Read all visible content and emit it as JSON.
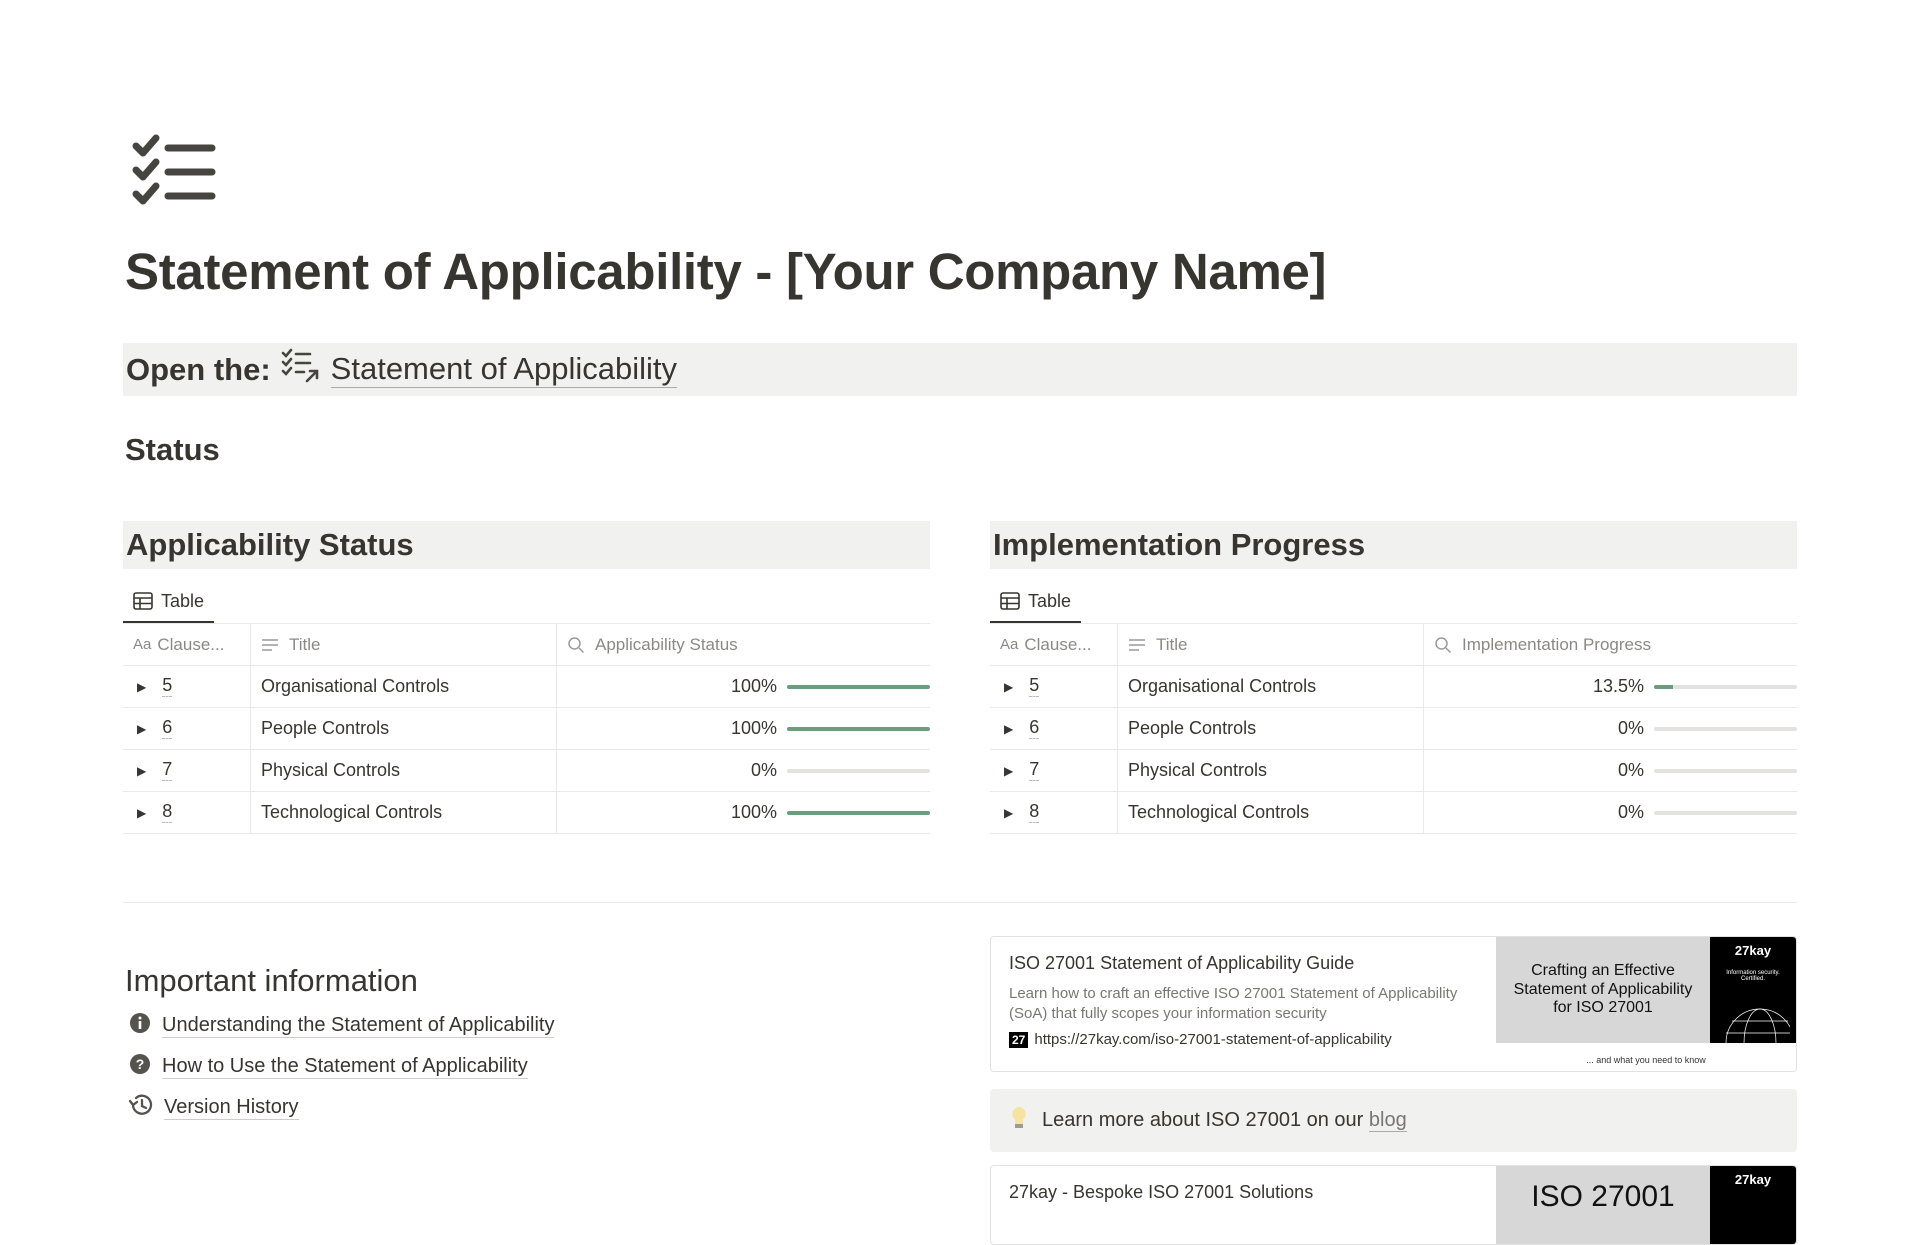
{
  "page": {
    "icon": "checklist-icon",
    "title": "Statement of Applicability - [Your Company Name]"
  },
  "open_bar": {
    "label": "Open the:",
    "link_icon": "checklist-link-icon",
    "link": "Statement of Applicability"
  },
  "status_heading": "Status",
  "accent_color": "#6c9b7d",
  "tables": [
    {
      "heading": "Applicability Status",
      "view_tab": "Table",
      "columns": [
        "Clause...",
        "Title",
        "Applicability Status"
      ],
      "rows": [
        {
          "clause": "5",
          "title": "Organisational Controls",
          "value": "100%",
          "fraction": 1
        },
        {
          "clause": "6",
          "title": "People Controls",
          "value": "100%",
          "fraction": 1
        },
        {
          "clause": "7",
          "title": "Physical Controls",
          "value": "0%",
          "fraction": 0
        },
        {
          "clause": "8",
          "title": "Technological Controls",
          "value": "100%",
          "fraction": 1
        }
      ]
    },
    {
      "heading": "Implementation Progress",
      "view_tab": "Table",
      "columns": [
        "Clause...",
        "Title",
        "Implementation Progress"
      ],
      "rows": [
        {
          "clause": "5",
          "title": "Organisational Controls",
          "value": "13.5%",
          "fraction": 0.135
        },
        {
          "clause": "6",
          "title": "People Controls",
          "value": "0%",
          "fraction": 0
        },
        {
          "clause": "7",
          "title": "Physical Controls",
          "value": "0%",
          "fraction": 0
        },
        {
          "clause": "8",
          "title": "Technological Controls",
          "value": "0%",
          "fraction": 0
        }
      ]
    }
  ],
  "important": {
    "heading": "Important information",
    "links": [
      {
        "icon": "info-icon",
        "label": "Understanding the Statement of Applicability"
      },
      {
        "icon": "question-icon",
        "label": "How to Use the Statement of Applicability"
      },
      {
        "icon": "history-icon",
        "label": "Version History"
      }
    ]
  },
  "bookmarks": [
    {
      "title": "ISO 27001 Statement of Applicability Guide",
      "description": "Learn how to craft an effective ISO 27001 Statement of Applicability (SoA) that fully scopes your information security",
      "favicon": "27",
      "url": "https://27kay.com/iso-27001-statement-of-applicability",
      "thumb_title": "Crafting an Effective Statement of Applicability for ISO 27001",
      "thumb_brand": "27kay",
      "thumb_tagline": "Information security. Certified.",
      "thumb_footer": "... and what you need to know"
    },
    {
      "title": "27kay - Bespoke ISO 27001 Solutions",
      "thumb_title": "ISO 27001",
      "thumb_brand": "27kay"
    }
  ],
  "callout": {
    "icon": "lightbulb-icon",
    "text": "Learn more about ISO 27001 on our ",
    "link": "blog"
  }
}
